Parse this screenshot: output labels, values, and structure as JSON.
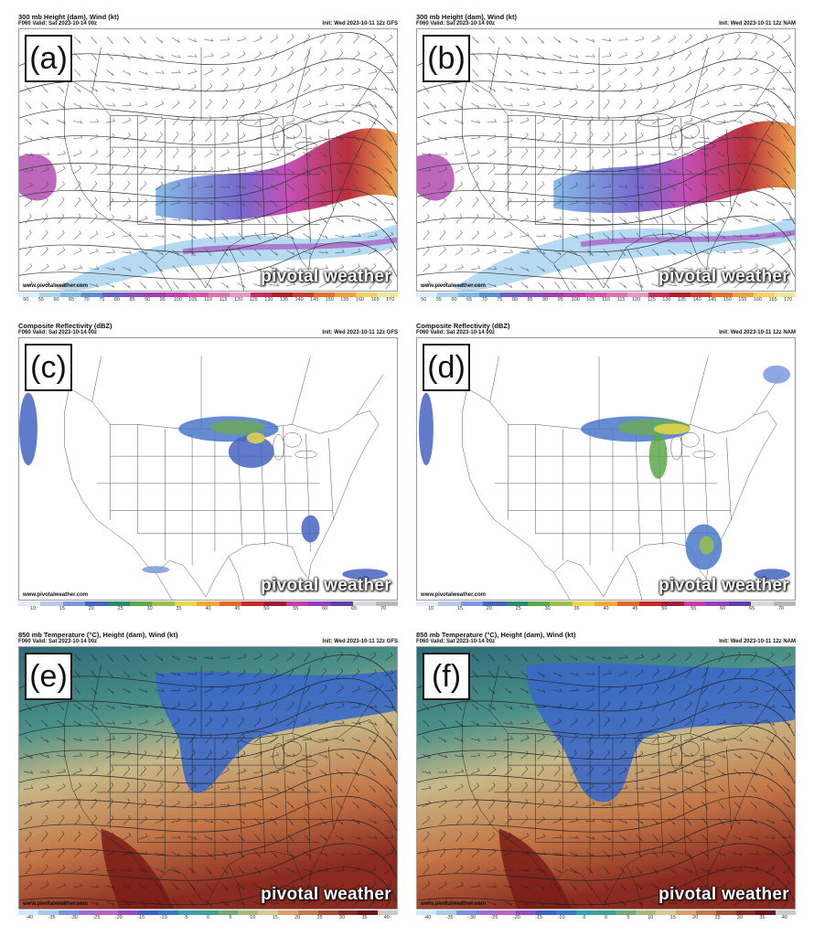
{
  "panels": [
    {
      "id": "a",
      "letter": "(a)",
      "title": "300 mb Height (dam), Wind (kt)",
      "valid": "F060 Valid: Sat 2023-10-14 00z",
      "init": "Init: Wed 2023-10-11 12z GFS",
      "url": "www.pivotalweather.com",
      "brand": "pivotal weather",
      "type": "jet",
      "ticks": [
        "50",
        "55",
        "60",
        "65",
        "70",
        "75",
        "80",
        "85",
        "90",
        "95",
        "100",
        "105",
        "110",
        "115",
        "120",
        "125",
        "130",
        "135",
        "140",
        "145",
        "150",
        "155",
        "160",
        "165",
        "170"
      ]
    },
    {
      "id": "b",
      "letter": "(b)",
      "title": "300 mb Height (dam), Wind (kt)",
      "valid": "F060 Valid: Sat 2023-10-14 00z",
      "init": "Init: Wed 2023-10-11 12z NAM",
      "url": "www.pivotalweather.com",
      "brand": "pivotal weather",
      "type": "jet",
      "ticks": [
        "50",
        "55",
        "60",
        "65",
        "70",
        "75",
        "80",
        "85",
        "90",
        "95",
        "100",
        "105",
        "110",
        "115",
        "120",
        "125",
        "130",
        "135",
        "140",
        "145",
        "150",
        "155",
        "160",
        "165",
        "170"
      ]
    },
    {
      "id": "c",
      "letter": "(c)",
      "title": "Composite Reflectivity (dBZ)",
      "valid": "F060 Valid: Sat 2023-10-14 00z",
      "init": "Init: Wed 2023-10-11 12z GFS",
      "url": "www.pivotalweather.com",
      "brand": "pivotal weather",
      "type": "refl",
      "ticks": [
        "10",
        "15",
        "20",
        "25",
        "30",
        "35",
        "40",
        "45",
        "50",
        "55",
        "60",
        "65",
        "70"
      ]
    },
    {
      "id": "d",
      "letter": "(d)",
      "title": "Composite Reflectivity (dBZ)",
      "valid": "F060 Valid: Sat 2023-10-14 00z",
      "init": "Init: Wed 2023-10-11 12z NAM",
      "url": "www.pivotalweather.com",
      "brand": "pivotal weather",
      "type": "refl",
      "ticks": [
        "10",
        "15",
        "20",
        "25",
        "30",
        "35",
        "40",
        "45",
        "50",
        "55",
        "60",
        "65",
        "70"
      ]
    },
    {
      "id": "e",
      "letter": "(e)",
      "title": "850 mb Temperature (°C), Height (dam), Wind (kt)",
      "valid": "F060 Valid: Sat 2023-10-14 00z",
      "init": "Init: Wed 2023-10-11 12z GFS",
      "url": "www.pivotalweather.com",
      "brand": "pivotal weather",
      "type": "temp",
      "ticks": [
        "-40",
        "-35",
        "-30",
        "-25",
        "-20",
        "-15",
        "-10",
        "-5",
        "0",
        "5",
        "10",
        "15",
        "20",
        "25",
        "30",
        "35",
        "40"
      ]
    },
    {
      "id": "f",
      "letter": "(f)",
      "title": "850 mb Temperature (°C), Height (dam), Wind (kt)",
      "valid": "F060 Valid: Sat 2023-10-14 00z",
      "init": "Init: Wed 2023-10-11 12z NAM",
      "url": "www.pivotalweather.com",
      "brand": "pivotal weather",
      "type": "temp",
      "ticks": [
        "-40",
        "-35",
        "-30",
        "-25",
        "-20",
        "-15",
        "-10",
        "-5",
        "0",
        "5",
        "10",
        "15",
        "20",
        "25",
        "30",
        "35",
        "40"
      ]
    }
  ],
  "colorbars": {
    "jet": [
      "#d8eefa",
      "#a9d3f0",
      "#7cb6e6",
      "#5a8ed4",
      "#6a5cc8",
      "#8a4ac0",
      "#a43cb8",
      "#c040b0",
      "#d452a8",
      "#e070b0",
      "#ea96c4",
      "#c82c5a",
      "#b01e2a",
      "#c8402a",
      "#e07030",
      "#f0a040",
      "#f8d060",
      "#f0e890"
    ],
    "refl": [
      "#e8e8f4",
      "#b8c8ec",
      "#7c98dc",
      "#4464c0",
      "#2a8a6c",
      "#5aa84a",
      "#98c04a",
      "#e8d84a",
      "#f0a838",
      "#e0682a",
      "#c8282a",
      "#a01c3c",
      "#c83ca8",
      "#9040c0",
      "#6040a0",
      "#d8d8d8",
      "#b8b8b8"
    ],
    "temp": [
      "#d0e8f8",
      "#a8c8f0",
      "#8090e0",
      "#a070d0",
      "#c060c0",
      "#9050c0",
      "#4060c8",
      "#3a78c8",
      "#3aa0b0",
      "#40a090",
      "#70a878",
      "#a8b878",
      "#d8c890",
      "#d8a068",
      "#c47848",
      "#a84e30",
      "#8a2a20",
      "#6a1616",
      "#c8c8c8"
    ]
  }
}
